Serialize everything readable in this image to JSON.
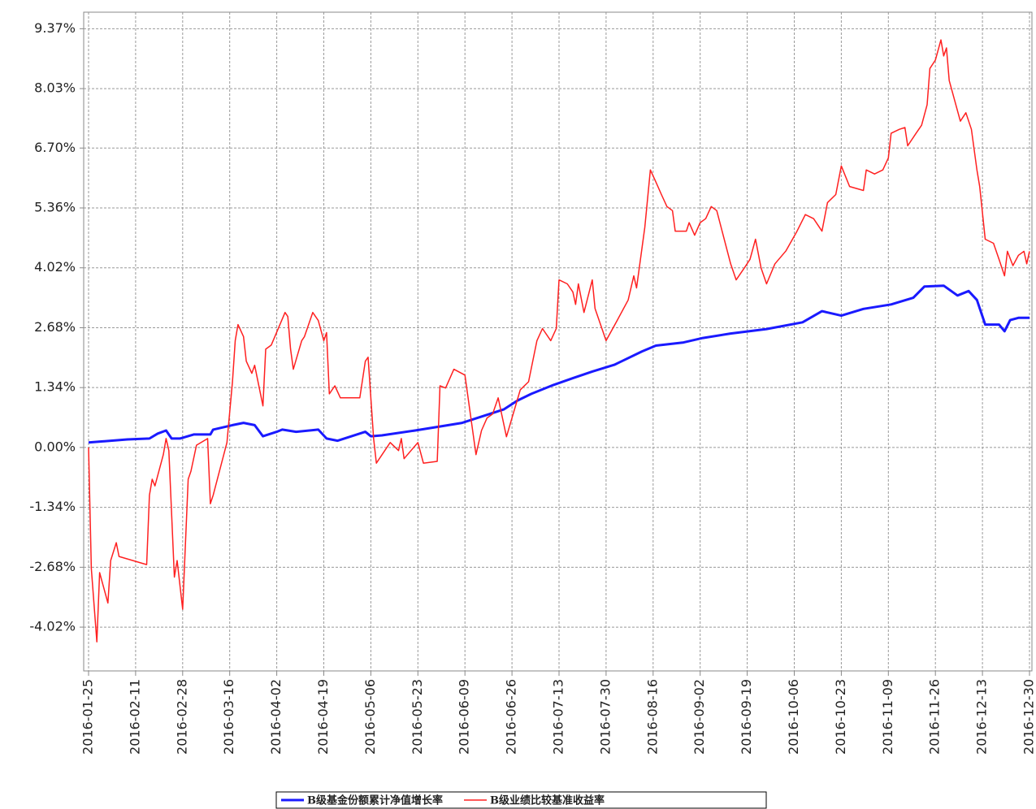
{
  "chart_data": {
    "type": "line",
    "grid": true,
    "legend": "bottom",
    "xlim": [
      "2016-01-25",
      "2016-12-30"
    ],
    "xticks": [
      "2016-01-25",
      "2016-02-11",
      "2016-02-28",
      "2016-03-16",
      "2016-04-02",
      "2016-04-19",
      "2016-05-06",
      "2016-05-23",
      "2016-06-09",
      "2016-06-26",
      "2016-07-13",
      "2016-07-30",
      "2016-08-16",
      "2016-09-02",
      "2016-09-19",
      "2016-10-06",
      "2016-10-23",
      "2016-11-09",
      "2016-11-26",
      "2016-12-13",
      "2016-12-30"
    ],
    "ylim": [
      -5.0,
      9.74
    ],
    "yticks": [
      {
        "value": -4.02,
        "label": "-4.02%"
      },
      {
        "value": -2.68,
        "label": "-2.68%"
      },
      {
        "value": -1.34,
        "label": "-1.34%"
      },
      {
        "value": 0,
        "label": "0.00%"
      },
      {
        "value": 1.34,
        "label": "1.34%"
      },
      {
        "value": 2.68,
        "label": "2.68%"
      },
      {
        "value": 4.02,
        "label": "4.02%"
      },
      {
        "value": 5.36,
        "label": "5.36%"
      },
      {
        "value": 6.7,
        "label": "6.70%"
      },
      {
        "value": 8.03,
        "label": "8.03%"
      },
      {
        "value": 9.37,
        "label": "9.37%"
      }
    ],
    "series": [
      {
        "name": "B级基金份额累计净值增长率",
        "color": "#1a1aff",
        "width": 3,
        "x": [
          "2016-01-25",
          "2016-02-08",
          "2016-02-16",
          "2016-02-19",
          "2016-02-22",
          "2016-02-24",
          "2016-02-27",
          "2016-03-03",
          "2016-03-09",
          "2016-03-10",
          "2016-03-17",
          "2016-03-21",
          "2016-03-25",
          "2016-03-28",
          "2016-04-02",
          "2016-04-04",
          "2016-04-09",
          "2016-04-17",
          "2016-04-20",
          "2016-04-24",
          "2016-04-29",
          "2016-05-04",
          "2016-05-06",
          "2016-05-10",
          "2016-05-22",
          "2016-06-01",
          "2016-06-08",
          "2016-06-18",
          "2016-06-23",
          "2016-06-28",
          "2016-07-03",
          "2016-07-11",
          "2016-07-18",
          "2016-07-25",
          "2016-08-02",
          "2016-08-12",
          "2016-08-17",
          "2016-08-27",
          "2016-09-03",
          "2016-09-13",
          "2016-09-26",
          "2016-10-09",
          "2016-10-16",
          "2016-10-23",
          "2016-10-31",
          "2016-11-10",
          "2016-11-18",
          "2016-11-22",
          "2016-11-29",
          "2016-12-04",
          "2016-12-08",
          "2016-12-11",
          "2016-12-14",
          "2016-12-19",
          "2016-12-21",
          "2016-12-23",
          "2016-12-26",
          "2016-12-30"
        ],
        "values": [
          0.11,
          0.18,
          0.2,
          0.31,
          0.38,
          0.2,
          0.2,
          0.29,
          0.29,
          0.4,
          0.5,
          0.55,
          0.5,
          0.25,
          0.35,
          0.4,
          0.35,
          0.4,
          0.2,
          0.15,
          0.25,
          0.35,
          0.25,
          0.27,
          0.38,
          0.48,
          0.55,
          0.75,
          0.85,
          1.05,
          1.2,
          1.4,
          1.55,
          1.7,
          1.85,
          2.15,
          2.28,
          2.35,
          2.45,
          2.55,
          2.65,
          2.8,
          3.05,
          2.95,
          3.1,
          3.2,
          3.35,
          3.6,
          3.62,
          3.4,
          3.5,
          3.3,
          2.75,
          2.75,
          2.6,
          2.85,
          2.9,
          2.9
        ]
      },
      {
        "name": "B级业绩比较基准收益率",
        "color": "#ff2020",
        "width": 1.5,
        "x": [
          "2016-01-25",
          "2016-01-26",
          "2016-01-28",
          "2016-01-29",
          "2016-02-01",
          "2016-02-02",
          "2016-02-04",
          "2016-02-05",
          "2016-02-15",
          "2016-02-16",
          "2016-02-17",
          "2016-02-18",
          "2016-02-21",
          "2016-02-22",
          "2016-02-23",
          "2016-02-25",
          "2016-02-26",
          "2016-02-28",
          "2016-03-01",
          "2016-03-02",
          "2016-03-04",
          "2016-03-08",
          "2016-03-09",
          "2016-03-10",
          "2016-03-15",
          "2016-03-17",
          "2016-03-18",
          "2016-03-19",
          "2016-03-21",
          "2016-03-22",
          "2016-03-24",
          "2016-03-25",
          "2016-03-28",
          "2016-03-29",
          "2016-03-31",
          "2016-04-05",
          "2016-04-06",
          "2016-04-07",
          "2016-04-08",
          "2016-04-11",
          "2016-04-12",
          "2016-04-14",
          "2016-04-15",
          "2016-04-17",
          "2016-04-19",
          "2016-04-20",
          "2016-04-21",
          "2016-04-23",
          "2016-04-25",
          "2016-05-02",
          "2016-05-04",
          "2016-05-05",
          "2016-05-07",
          "2016-05-08",
          "2016-05-13",
          "2016-05-16",
          "2016-05-17",
          "2016-05-18",
          "2016-05-23",
          "2016-05-25",
          "2016-05-30",
          "2016-05-31",
          "2016-06-02",
          "2016-06-05",
          "2016-06-09",
          "2016-06-13",
          "2016-06-15",
          "2016-06-17",
          "2016-06-19",
          "2016-06-21",
          "2016-06-24",
          "2016-06-26",
          "2016-06-29",
          "2016-07-02",
          "2016-07-05",
          "2016-07-07",
          "2016-07-10",
          "2016-07-12",
          "2016-07-13",
          "2016-07-16",
          "2016-07-18",
          "2016-07-19",
          "2016-07-20",
          "2016-07-22",
          "2016-07-25",
          "2016-07-26",
          "2016-07-28",
          "2016-07-30",
          "2016-08-03",
          "2016-08-07",
          "2016-08-09",
          "2016-08-10",
          "2016-08-13",
          "2016-08-15",
          "2016-08-17",
          "2016-08-19",
          "2016-08-21",
          "2016-08-23",
          "2016-08-24",
          "2016-08-28",
          "2016-08-29",
          "2016-08-31",
          "2016-09-02",
          "2016-09-04",
          "2016-09-06",
          "2016-09-08",
          "2016-09-13",
          "2016-09-15",
          "2016-09-18",
          "2016-09-20",
          "2016-09-22",
          "2016-09-24",
          "2016-09-26",
          "2016-09-29",
          "2016-10-03",
          "2016-10-07",
          "2016-10-10",
          "2016-10-13",
          "2016-10-16",
          "2016-10-18",
          "2016-10-21",
          "2016-10-23",
          "2016-10-26",
          "2016-10-31",
          "2016-11-01",
          "2016-11-04",
          "2016-11-07",
          "2016-11-09",
          "2016-11-10",
          "2016-11-13",
          "2016-11-15",
          "2016-11-16",
          "2016-11-19",
          "2016-11-21",
          "2016-11-23",
          "2016-11-24",
          "2016-11-26",
          "2016-11-28",
          "2016-11-29",
          "2016-11-30",
          "2016-12-01",
          "2016-12-05",
          "2016-12-07",
          "2016-12-09",
          "2016-12-11",
          "2016-12-12",
          "2016-12-14",
          "2016-12-17",
          "2016-12-19",
          "2016-12-21",
          "2016-12-22",
          "2016-12-24",
          "2016-12-26",
          "2016-12-28",
          "2016-12-29",
          "2016-12-30"
        ],
        "values": [
          0.0,
          -2.71,
          -4.35,
          -2.8,
          -3.48,
          -2.53,
          -2.13,
          -2.44,
          -2.62,
          -1.07,
          -0.71,
          -0.86,
          -0.16,
          0.2,
          -0.07,
          -2.9,
          -2.53,
          -3.62,
          -0.71,
          -0.53,
          0.05,
          0.2,
          -1.26,
          -1.07,
          0.11,
          1.47,
          2.39,
          2.75,
          2.48,
          1.93,
          1.66,
          1.84,
          0.93,
          2.2,
          2.29,
          3.02,
          2.93,
          2.2,
          1.75,
          2.39,
          2.48,
          2.84,
          3.02,
          2.84,
          2.39,
          2.57,
          1.2,
          1.38,
          1.11,
          1.11,
          1.93,
          2.02,
          0.2,
          -0.35,
          0.11,
          -0.07,
          0.2,
          -0.25,
          0.11,
          -0.35,
          -0.31,
          1.38,
          1.33,
          1.75,
          1.62,
          -0.16,
          0.38,
          0.66,
          0.75,
          1.11,
          0.24,
          0.66,
          1.29,
          1.47,
          2.39,
          2.66,
          2.39,
          2.66,
          3.75,
          3.66,
          3.48,
          3.2,
          3.66,
          3.02,
          3.75,
          3.11,
          2.75,
          2.39,
          2.84,
          3.3,
          3.84,
          3.57,
          4.93,
          6.21,
          5.94,
          5.66,
          5.39,
          5.3,
          4.84,
          4.84,
          5.03,
          4.75,
          5.03,
          5.12,
          5.39,
          5.3,
          4.11,
          3.75,
          4.02,
          4.21,
          4.66,
          4.02,
          3.66,
          4.11,
          4.4,
          4.84,
          5.21,
          5.12,
          4.84,
          5.48,
          5.66,
          6.3,
          5.84,
          5.75,
          6.21,
          6.12,
          6.21,
          6.48,
          7.03,
          7.12,
          7.16,
          6.75,
          7.03,
          7.21,
          7.67,
          8.48,
          8.67,
          9.12,
          8.76,
          8.94,
          8.21,
          7.3,
          7.49,
          7.12,
          6.21,
          5.84,
          4.66,
          4.57,
          4.21,
          3.84,
          4.39,
          4.07,
          4.3,
          4.39,
          4.11,
          4.39
        ]
      }
    ]
  }
}
